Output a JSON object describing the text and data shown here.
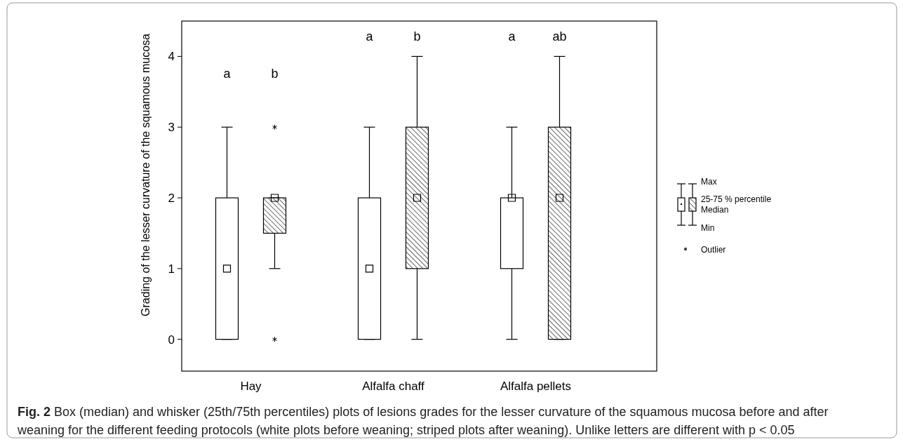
{
  "chart_data": {
    "type": "box",
    "ylabel": "Grading of the lesser curvature  of the squamous mucosa",
    "categories": [
      "Hay",
      "Alfalfa chaff",
      "Alfalfa pellets"
    ],
    "ylim": [
      -0.45,
      4.5
    ],
    "yticks": [
      0,
      1,
      2,
      3,
      4
    ],
    "marker": "square",
    "series": [
      {
        "color": "#ffffff",
        "boxes": [
          {
            "low": 0,
            "q1": 0,
            "median": 1,
            "q3": 2,
            "high": 3
          },
          {
            "low": 0,
            "q1": 0,
            "median": 1,
            "q3": 2,
            "high": 3
          },
          {
            "low": 0,
            "q1": 1,
            "median": 2,
            "q3": 2,
            "high": 3
          }
        ]
      },
      {
        "color": "#000000",
        "boxes": [
          {
            "low": 1,
            "q1": 1.5,
            "median": 2,
            "q3": 2,
            "high": 2,
            "outliers": [
              3,
              0
            ]
          },
          {
            "low": 0,
            "q1": 1,
            "median": 2,
            "q3": 3,
            "high": 4
          },
          {
            "low": 0,
            "q1": 0,
            "median": 2,
            "q3": 3,
            "high": 4
          }
        ]
      }
    ],
    "annotations": [
      "a",
      "b",
      "a",
      "b",
      "a",
      "ab",
      "Max",
      "25-75 % percentile",
      "Median",
      "Min",
      "Outlier",
      "Fig. 2 Box (median) and whisker (25th/75th percentiles) plots of lesions grades for the lesser curvature of the squamous mucosa before and after weaning for the different feeding protocols (white plots before weaning; striped plots after weaning). Unlike letters are different with p < 0.05"
    ]
  }
}
